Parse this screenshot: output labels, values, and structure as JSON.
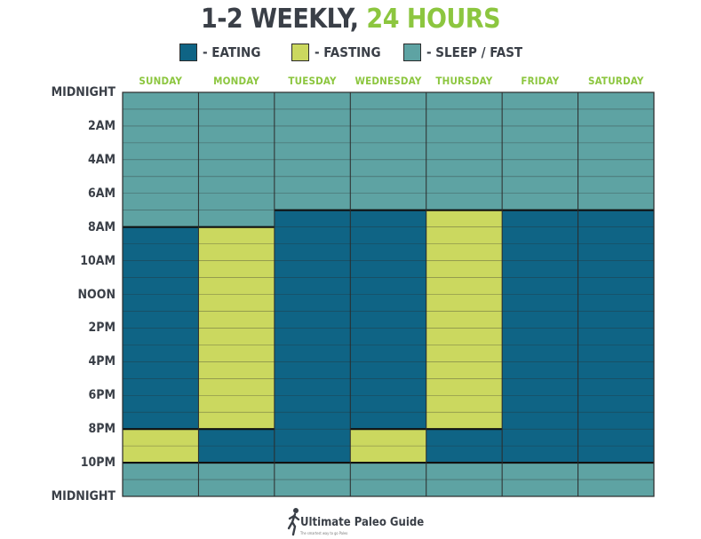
{
  "title": {
    "main": "1-2 WEEKLY, ",
    "accent": "24 HOURS"
  },
  "legend": [
    {
      "label": "- EATING",
      "color": "#0f6485"
    },
    {
      "label": "- FASTING",
      "color": "#cbd85f"
    },
    {
      "label": "- SLEEP / FAST",
      "color": "#5ea3a3"
    }
  ],
  "colors": {
    "eating": "#0f6485",
    "fasting": "#cbd85f",
    "sleep": "#5ea3a3",
    "title": "#3a3f47",
    "accent": "#8cc63f",
    "grid": "#2b2b2b"
  },
  "time_labels": [
    "MIDNIGHT",
    "2AM",
    "4AM",
    "6AM",
    "8AM",
    "10AM",
    "NOON",
    "2PM",
    "4PM",
    "6PM",
    "8PM",
    "10PM",
    "MIDNIGHT"
  ],
  "brand": {
    "name": "Ultimate Paleo Guide",
    "tagline": "The smartest way to go Paleo"
  },
  "chart_data": {
    "type": "heatmap",
    "title": "1-2 WEEKLY, 24 HOURS",
    "days": [
      "SUNDAY",
      "MONDAY",
      "TUESDAY",
      "WEDNESDAY",
      "THURSDAY",
      "FRIDAY",
      "SATURDAY"
    ],
    "hour_range": [
      0,
      24
    ],
    "blocks": [
      [
        {
          "state": "sleep",
          "start": 0,
          "end": 8
        },
        {
          "state": "eating",
          "start": 8,
          "end": 20
        },
        {
          "state": "fasting",
          "start": 20,
          "end": 22
        },
        {
          "state": "sleep",
          "start": 22,
          "end": 24
        }
      ],
      [
        {
          "state": "sleep",
          "start": 0,
          "end": 8
        },
        {
          "state": "fasting",
          "start": 8,
          "end": 20
        },
        {
          "state": "eating",
          "start": 20,
          "end": 22
        },
        {
          "state": "sleep",
          "start": 22,
          "end": 24
        }
      ],
      [
        {
          "state": "sleep",
          "start": 0,
          "end": 7
        },
        {
          "state": "eating",
          "start": 7,
          "end": 22
        },
        {
          "state": "sleep",
          "start": 22,
          "end": 24
        }
      ],
      [
        {
          "state": "sleep",
          "start": 0,
          "end": 7
        },
        {
          "state": "eating",
          "start": 7,
          "end": 20
        },
        {
          "state": "fasting",
          "start": 20,
          "end": 22
        },
        {
          "state": "sleep",
          "start": 22,
          "end": 24
        }
      ],
      [
        {
          "state": "sleep",
          "start": 0,
          "end": 7
        },
        {
          "state": "fasting",
          "start": 7,
          "end": 20
        },
        {
          "state": "eating",
          "start": 20,
          "end": 22
        },
        {
          "state": "sleep",
          "start": 22,
          "end": 24
        }
      ],
      [
        {
          "state": "sleep",
          "start": 0,
          "end": 7
        },
        {
          "state": "eating",
          "start": 7,
          "end": 22
        },
        {
          "state": "sleep",
          "start": 22,
          "end": 24
        }
      ],
      [
        {
          "state": "sleep",
          "start": 0,
          "end": 7
        },
        {
          "state": "eating",
          "start": 7,
          "end": 22
        },
        {
          "state": "sleep",
          "start": 22,
          "end": 24
        }
      ]
    ]
  }
}
